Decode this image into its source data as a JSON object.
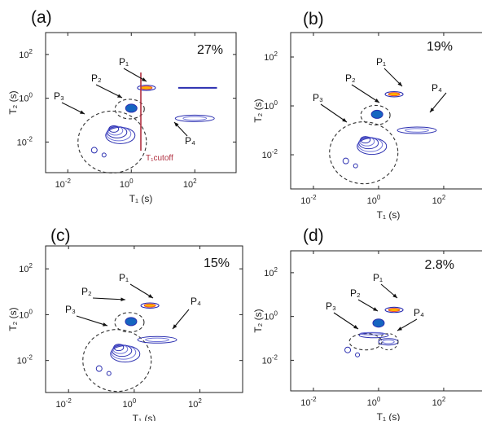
{
  "chart_data": [
    {
      "type": "heatmap",
      "panel": "(a)",
      "percent": "27%",
      "xlabel": "T₁ (s)",
      "ylabel": "T₂ (s)",
      "x_scale": "log",
      "y_scale": "log",
      "xlim": [
        0.002,
        2000
      ],
      "ylim": [
        0.0004,
        1000
      ],
      "xticks": [
        {
          "v": 0.01,
          "base": "10",
          "exp": "-2"
        },
        {
          "v": 1,
          "base": "10",
          "exp": "0"
        },
        {
          "v": 100,
          "base": "10",
          "exp": "2"
        }
      ],
      "yticks": [
        {
          "v": 0.01,
          "base": "10",
          "exp": "-2"
        },
        {
          "v": 1,
          "base": "10",
          "exp": "0"
        },
        {
          "v": 100,
          "base": "10",
          "exp": "2"
        }
      ],
      "cutoff": {
        "x": 2.0,
        "label": "T₁cutoff"
      },
      "peaks": [
        {
          "label": "P₁",
          "t1": 3.0,
          "t2": 3.0
        },
        {
          "label": "P₂",
          "t1": 1.0,
          "t2": 0.35
        },
        {
          "label": "P₃",
          "t1": 0.25,
          "t2": 0.01
        },
        {
          "label": "P₄",
          "t1": 100,
          "t2": 0.12
        }
      ]
    },
    {
      "type": "heatmap",
      "panel": "(b)",
      "percent": "19%",
      "xlabel": "T₁ (s)",
      "ylabel": "T₂ (s)",
      "x_scale": "log",
      "y_scale": "log",
      "xlim": [
        0.002,
        2000
      ],
      "ylim": [
        0.0004,
        1000
      ],
      "xticks": [
        {
          "v": 0.01,
          "base": "10",
          "exp": "-2"
        },
        {
          "v": 1,
          "base": "10",
          "exp": "0"
        },
        {
          "v": 100,
          "base": "10",
          "exp": "2"
        }
      ],
      "yticks": [
        {
          "v": 0.01,
          "base": "10",
          "exp": "-2"
        },
        {
          "v": 1,
          "base": "10",
          "exp": "0"
        },
        {
          "v": 100,
          "base": "10",
          "exp": "2"
        }
      ],
      "peaks": [
        {
          "label": "P₁",
          "t1": 3.0,
          "t2": 3.0
        },
        {
          "label": "P₂",
          "t1": 0.9,
          "t2": 0.45
        },
        {
          "label": "P₃",
          "t1": 0.35,
          "t2": 0.012
        },
        {
          "label": "P₄",
          "t1": 15,
          "t2": 0.1
        }
      ]
    },
    {
      "type": "heatmap",
      "panel": "(c)",
      "percent": "15%",
      "xlabel": "T₁ (s)",
      "ylabel": "T₂ (s)",
      "x_scale": "log",
      "y_scale": "log",
      "xlim": [
        0.002,
        2000
      ],
      "ylim": [
        0.0004,
        1000
      ],
      "xticks": [
        {
          "v": 0.01,
          "base": "10",
          "exp": "-2"
        },
        {
          "v": 1,
          "base": "10",
          "exp": "0"
        },
        {
          "v": 100,
          "base": "10",
          "exp": "2"
        }
      ],
      "yticks": [
        {
          "v": 0.01,
          "base": "10",
          "exp": "-2"
        },
        {
          "v": 1,
          "base": "10",
          "exp": "0"
        },
        {
          "v": 100,
          "base": "10",
          "exp": "2"
        }
      ],
      "peaks": [
        {
          "label": "P₁",
          "t1": 3.0,
          "t2": 2.5
        },
        {
          "label": "P₂",
          "t1": 0.8,
          "t2": 0.5
        },
        {
          "label": "P₃",
          "t1": 0.3,
          "t2": 0.01
        },
        {
          "label": "P₄",
          "t1": 5.0,
          "t2": 0.08
        }
      ]
    },
    {
      "type": "heatmap",
      "panel": "(d)",
      "percent": "2.8%",
      "xlabel": "T₁ (s)",
      "ylabel": "T₂ (s)",
      "x_scale": "log",
      "y_scale": "log",
      "xlim": [
        0.002,
        2000
      ],
      "ylim": [
        0.0004,
        1000
      ],
      "xticks": [
        {
          "v": 0.01,
          "base": "10",
          "exp": "-2"
        },
        {
          "v": 1,
          "base": "10",
          "exp": "0"
        },
        {
          "v": 100,
          "base": "10",
          "exp": "2"
        }
      ],
      "yticks": [
        {
          "v": 0.01,
          "base": "10",
          "exp": "-2"
        },
        {
          "v": 1,
          "base": "10",
          "exp": "0"
        },
        {
          "v": 100,
          "base": "10",
          "exp": "2"
        }
      ],
      "peaks": [
        {
          "label": "P₁",
          "t1": 3.0,
          "t2": 2.0
        },
        {
          "label": "P₂",
          "t1": 1.0,
          "t2": 0.5
        },
        {
          "label": "P₃",
          "t1": 0.4,
          "t2": 0.07
        },
        {
          "label": "P₄",
          "t1": 2.0,
          "t2": 0.07
        }
      ]
    }
  ],
  "colors": {
    "contour": "#2b2fb0",
    "contour_light": "#6f73d8",
    "peak_core": "#1565c0",
    "hot": "#ffb300",
    "hot_red": "#e53935",
    "cutoff_line": "#b03040",
    "axis": "#222222",
    "dashed": "#333333"
  }
}
